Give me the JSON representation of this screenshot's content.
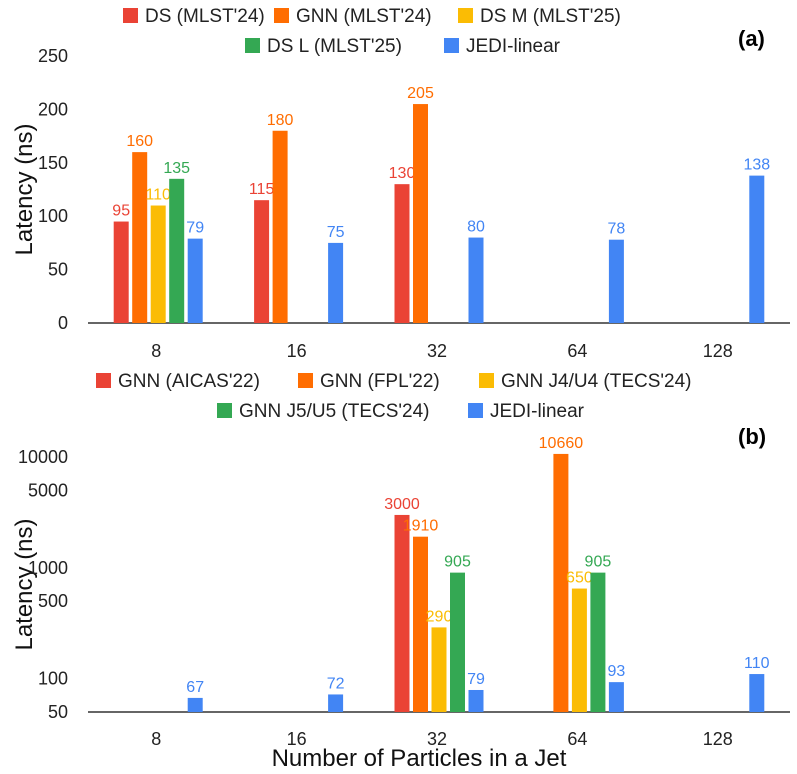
{
  "colors": {
    "red": "#EA4335",
    "orange": "#FF6D01",
    "yellow": "#FBBC04",
    "green": "#34A853",
    "blue": "#4285F4"
  },
  "chart_data": [
    {
      "type": "bar",
      "panel_label": "(a)",
      "ylabel": "Latency (ns)",
      "xlabel": "",
      "yscale": "linear",
      "ylim": [
        0,
        250
      ],
      "yticks": [
        "0",
        "50",
        "100",
        "150",
        "200",
        "250"
      ],
      "categories": [
        "8",
        "16",
        "32",
        "64",
        "128"
      ],
      "series": [
        {
          "name": "DS  (MLST'24)",
          "color": "#EA4335",
          "values": [
            95,
            115,
            130,
            null,
            null
          ],
          "labels": [
            "95",
            "115",
            "130",
            "",
            ""
          ]
        },
        {
          "name": "GNN (MLST'24)",
          "color": "#FF6D01",
          "values": [
            160,
            180,
            205,
            null,
            null
          ],
          "labels": [
            "160",
            "180",
            "205",
            "",
            ""
          ]
        },
        {
          "name": "DS M  (MLST'25)",
          "color": "#FBBC04",
          "values": [
            110,
            null,
            null,
            null,
            null
          ],
          "labels": [
            "110",
            "",
            "",
            "",
            ""
          ]
        },
        {
          "name": "DS L  (MLST'25)",
          "color": "#34A853",
          "values": [
            135,
            null,
            null,
            null,
            null
          ],
          "labels": [
            "135",
            "",
            "",
            "",
            ""
          ]
        },
        {
          "name": "JEDI-linear",
          "color": "#4285F4",
          "values": [
            79,
            75,
            80,
            78,
            138
          ],
          "labels": [
            "79",
            "75",
            "80",
            "78",
            "138"
          ]
        }
      ]
    },
    {
      "type": "bar",
      "panel_label": "(b)",
      "ylabel": "Latency (ns)",
      "xlabel": "Number of Particles in a Jet",
      "yscale": "log",
      "ylim": [
        50,
        10000
      ],
      "yticks": [
        "50",
        "100",
        "500",
        "1000",
        "5000",
        "10000"
      ],
      "categories": [
        "8",
        "16",
        "32",
        "64",
        "128"
      ],
      "series": [
        {
          "name": "GNN (AICAS'22)",
          "color": "#EA4335",
          "values": [
            null,
            null,
            3000,
            null,
            null
          ],
          "labels": [
            "",
            "",
            "3000",
            "",
            ""
          ]
        },
        {
          "name": "GNN (FPL'22)",
          "color": "#FF6D01",
          "values": [
            null,
            null,
            1910,
            10660,
            null
          ],
          "labels": [
            "",
            "",
            "1910",
            "10660",
            ""
          ]
        },
        {
          "name": "GNN J4/U4 (TECS'24)",
          "color": "#FBBC04",
          "values": [
            null,
            null,
            290,
            650,
            null
          ],
          "labels": [
            "",
            "",
            "290",
            "650",
            ""
          ]
        },
        {
          "name": "GNN J5/U5 (TECS'24)",
          "color": "#34A853",
          "values": [
            null,
            null,
            905,
            905,
            null
          ],
          "labels": [
            "",
            "",
            "905",
            "905",
            ""
          ]
        },
        {
          "name": "JEDI-linear",
          "color": "#4285F4",
          "values": [
            67,
            72,
            79,
            93,
            110
          ],
          "labels": [
            "67",
            "72",
            "79",
            "93",
            "110"
          ]
        }
      ]
    }
  ]
}
